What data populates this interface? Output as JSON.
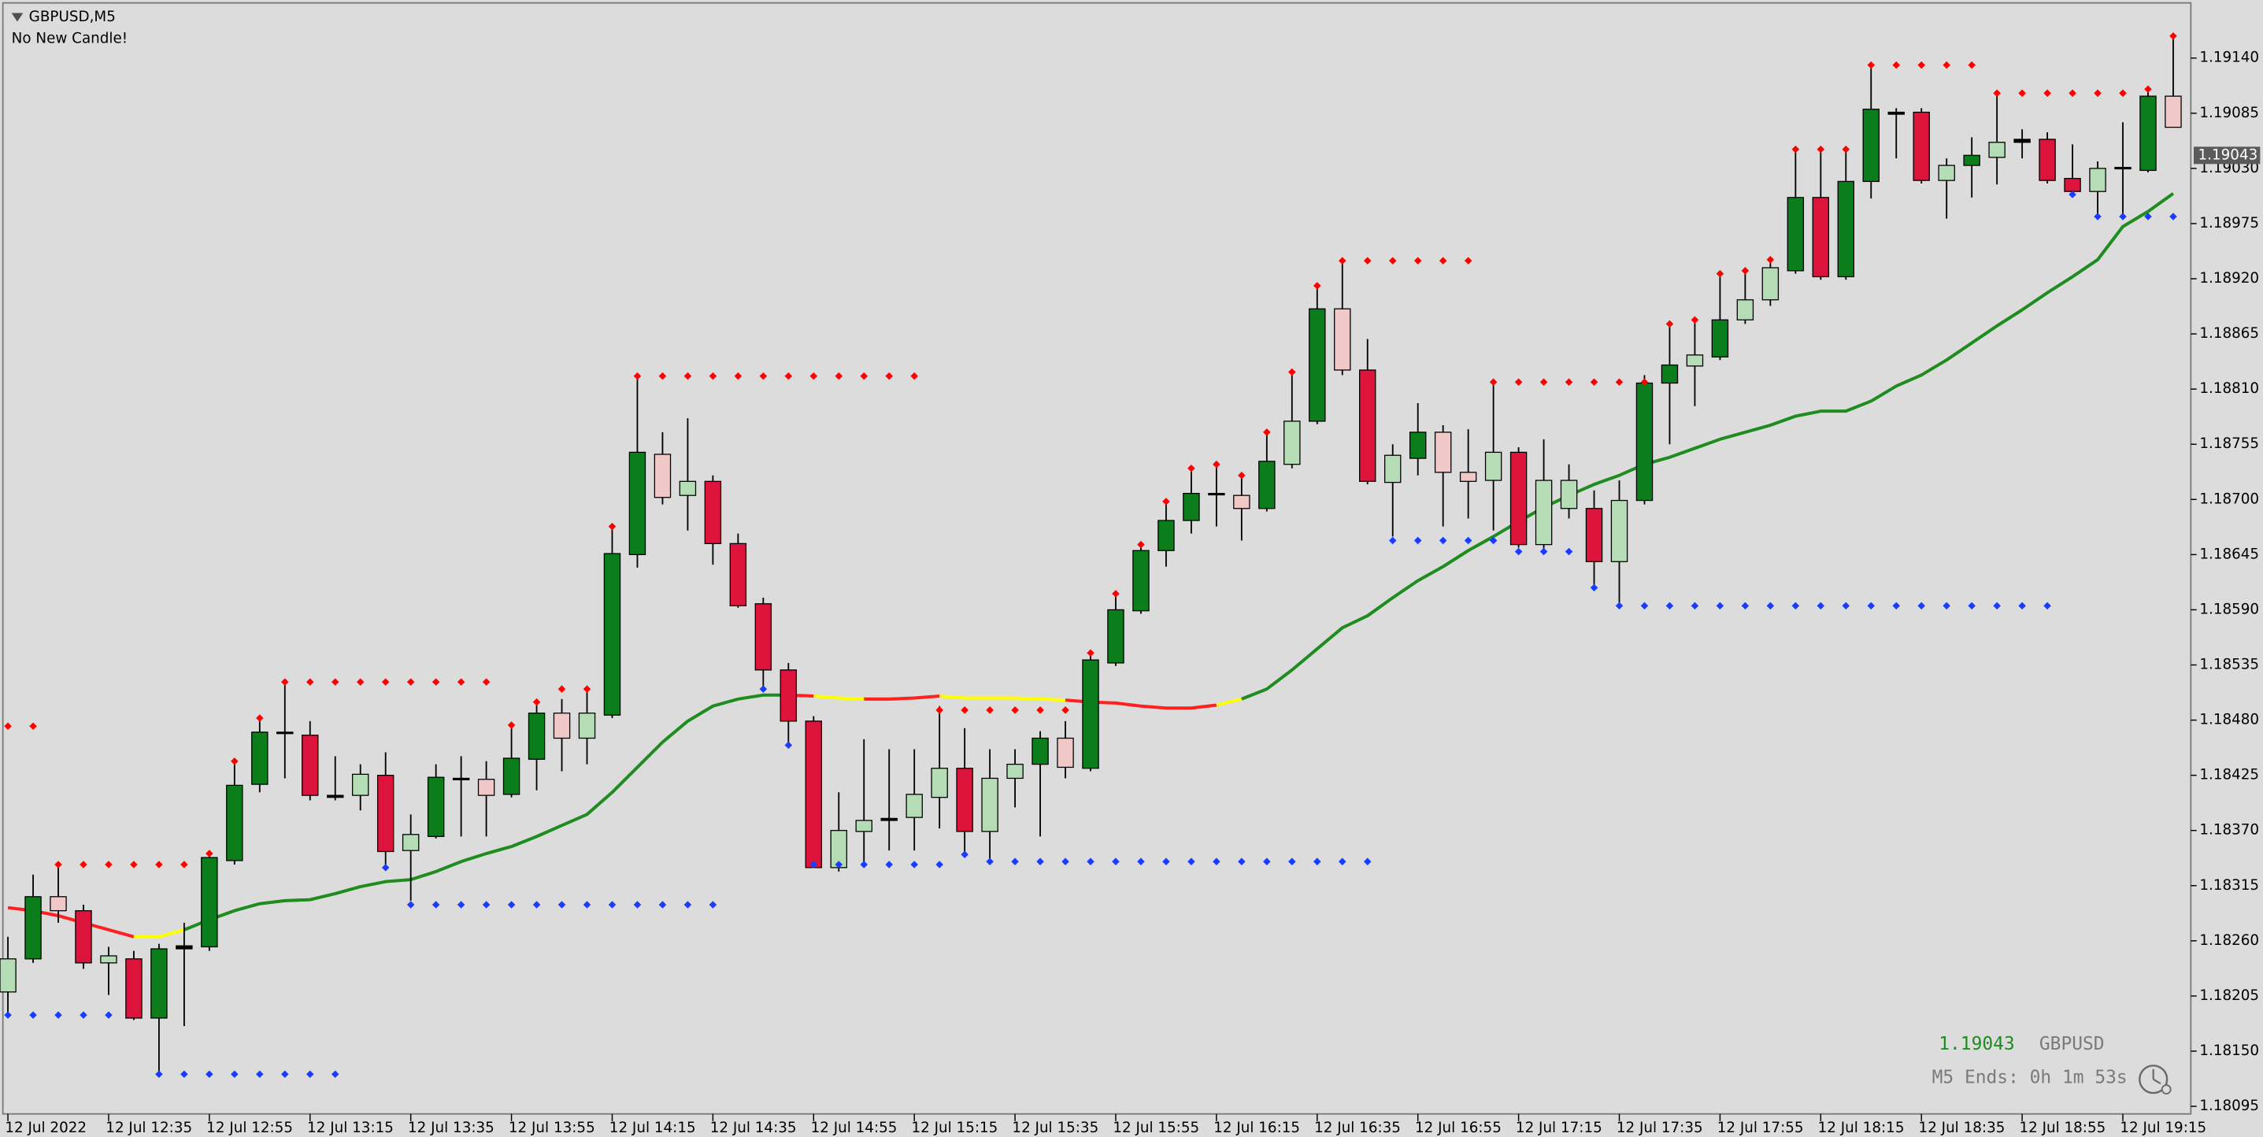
{
  "header": {
    "symbol_title": "GBPUSD,M5",
    "status": "No New Candle!"
  },
  "chart_data": {
    "type": "candlestick",
    "xlim": [
      -0.2,
      86.7
    ],
    "ylim": [
      1.18086,
      1.19195
    ],
    "xticks": [
      {
        "value": 0,
        "label": "12 Jul 2022"
      },
      {
        "value": 4,
        "label": "12 Jul 12:35"
      },
      {
        "value": 8,
        "label": "12 Jul 12:55"
      },
      {
        "value": 12,
        "label": "12 Jul 13:15"
      },
      {
        "value": 16,
        "label": "12 Jul 13:35"
      },
      {
        "value": 20,
        "label": "12 Jul 13:55"
      },
      {
        "value": 24,
        "label": "12 Jul 14:15"
      },
      {
        "value": 28,
        "label": "12 Jul 14:35"
      },
      {
        "value": 32,
        "label": "12 Jul 14:55"
      },
      {
        "value": 36,
        "label": "12 Jul 15:15"
      },
      {
        "value": 40,
        "label": "12 Jul 15:35"
      },
      {
        "value": 44,
        "label": "12 Jul 15:55"
      },
      {
        "value": 48,
        "label": "12 Jul 16:15"
      },
      {
        "value": 52,
        "label": "12 Jul 16:35"
      },
      {
        "value": 56,
        "label": "12 Jul 16:55"
      },
      {
        "value": 60,
        "label": "12 Jul 17:15"
      },
      {
        "value": 64,
        "label": "12 Jul 17:35"
      },
      {
        "value": 68,
        "label": "12 Jul 17:55"
      },
      {
        "value": 72,
        "label": "12 Jul 18:15"
      },
      {
        "value": 76,
        "label": "12 Jul 18:35"
      },
      {
        "value": 80,
        "label": "12 Jul 18:55"
      },
      {
        "value": 84,
        "label": "12 Jul 19:15"
      }
    ],
    "yticks": [
      {
        "value": 1.1914,
        "label": "1.19140"
      },
      {
        "value": 1.19085,
        "label": "1.19085"
      },
      {
        "value": 1.1903,
        "label": "1.19030"
      },
      {
        "value": 1.18975,
        "label": "1.18975"
      },
      {
        "value": 1.1892,
        "label": "1.18920"
      },
      {
        "value": 1.18865,
        "label": "1.18865"
      },
      {
        "value": 1.1881,
        "label": "1.18810"
      },
      {
        "value": 1.18755,
        "label": "1.18755"
      },
      {
        "value": 1.187,
        "label": "1.18700"
      },
      {
        "value": 1.18645,
        "label": "1.18645"
      },
      {
        "value": 1.1859,
        "label": "1.18590"
      },
      {
        "value": 1.18535,
        "label": "1.18535"
      },
      {
        "value": 1.1848,
        "label": "1.18480"
      },
      {
        "value": 1.18425,
        "label": "1.18425"
      },
      {
        "value": 1.1837,
        "label": "1.18370"
      },
      {
        "value": 1.18315,
        "label": "1.18315"
      },
      {
        "value": 1.1826,
        "label": "1.18260"
      },
      {
        "value": 1.18205,
        "label": "1.18205"
      },
      {
        "value": 1.1815,
        "label": "1.18150"
      },
      {
        "value": 1.18095,
        "label": "1.18095"
      }
    ],
    "open": [
      1.18209,
      1.18242,
      1.18304,
      1.1829,
      1.18238,
      1.18242,
      1.18183,
      1.18252,
      1.18254,
      1.1834,
      1.18416,
      1.18468,
      1.18465,
      1.18405,
      1.18405,
      1.18425,
      1.1835,
      1.18364,
      1.18422,
      1.18421,
      1.18406,
      1.18441,
      1.18487,
      1.18462,
      1.18485,
      1.18645,
      1.18745,
      1.18704,
      1.18718,
      1.18656,
      1.18596,
      1.1853,
      1.18479,
      1.18333,
      1.18369,
      1.1838,
      1.18383,
      1.18403,
      1.18432,
      1.18369,
      1.18422,
      1.18436,
      1.18462,
      1.18432,
      1.18537,
      1.18589,
      1.18649,
      1.18679,
      1.18705,
      1.18704,
      1.18691,
      1.18735,
      1.18778,
      1.1889,
      1.18829,
      1.18717,
      1.18741,
      1.18767,
      1.18727,
      1.18719,
      1.18747,
      1.18655,
      1.18691,
      1.18691,
      1.18638,
      1.18699,
      1.18816,
      1.18833,
      1.18842,
      1.18879,
      1.18899,
      1.18928,
      1.19001,
      1.18922,
      1.19017,
      1.19084,
      1.19086,
      1.19018,
      1.19033,
      1.19041,
      1.19056,
      1.19059,
      1.1902,
      1.19007,
      1.1903,
      1.19028,
      1.19102
    ],
    "high": [
      1.18264,
      1.18326,
      1.18336,
      1.18296,
      1.18254,
      1.1825,
      1.18257,
      1.18278,
      1.1835,
      1.18439,
      1.18479,
      1.18518,
      1.18479,
      1.18444,
      1.18436,
      1.18448,
      1.18386,
      1.18436,
      1.18444,
      1.18439,
      1.18472,
      1.18498,
      1.18501,
      1.18511,
      1.18671,
      1.18821,
      1.18767,
      1.18781,
      1.18724,
      1.18666,
      1.18602,
      1.18537,
      1.18484,
      1.18408,
      1.18461,
      1.18451,
      1.18451,
      1.18494,
      1.18472,
      1.18451,
      1.18451,
      1.18469,
      1.18479,
      1.18548,
      1.18606,
      1.18655,
      1.18698,
      1.18731,
      1.18735,
      1.18724,
      1.18767,
      1.18827,
      1.18913,
      1.18939,
      1.1886,
      1.18755,
      1.18796,
      1.18774,
      1.1877,
      1.18817,
      1.18752,
      1.1876,
      1.18735,
      1.18709,
      1.18719,
      1.18824,
      1.18875,
      1.18879,
      1.18925,
      1.18928,
      1.18939,
      1.19047,
      1.19047,
      1.19047,
      1.19133,
      1.1909,
      1.1909,
      1.1904,
      1.19061,
      1.19105,
      1.19069,
      1.19066,
      1.19054,
      1.19037,
      1.19076,
      1.19112,
      1.19162
    ],
    "low": [
      1.18185,
      1.18238,
      1.18278,
      1.18232,
      1.18206,
      1.18181,
      1.18127,
      1.18175,
      1.1825,
      1.18336,
      1.18408,
      1.18422,
      1.184,
      1.184,
      1.1839,
      1.18336,
      1.183,
      1.18362,
      1.18364,
      1.18364,
      1.18403,
      1.1841,
      1.18429,
      1.18436,
      1.18482,
      1.18632,
      1.18695,
      1.18669,
      1.18635,
      1.18592,
      1.18511,
      1.18458,
      1.18333,
      1.18329,
      1.18336,
      1.1835,
      1.1835,
      1.18372,
      1.18347,
      1.18339,
      1.18393,
      1.18364,
      1.18422,
      1.18429,
      1.18534,
      1.18586,
      1.18633,
      1.18666,
      1.18673,
      1.18659,
      1.18688,
      1.18731,
      1.18775,
      1.18824,
      1.18715,
      1.18663,
      1.18724,
      1.18673,
      1.18681,
      1.18669,
      1.18652,
      1.18649,
      1.18681,
      1.18612,
      1.18592,
      1.18695,
      1.18755,
      1.18793,
      1.18839,
      1.18875,
      1.18893,
      1.18925,
      1.18919,
      1.18919,
      1.19,
      1.1904,
      1.19015,
      1.1898,
      1.19001,
      1.19014,
      1.1904,
      1.19015,
      1.19004,
      1.1898,
      1.18982,
      1.19026,
      1.19071
    ],
    "close": [
      1.18242,
      1.18304,
      1.1829,
      1.18238,
      1.18245,
      1.18183,
      1.18252,
      1.18255,
      1.18343,
      1.18415,
      1.18468,
      1.18467,
      1.18405,
      1.18403,
      1.18426,
      1.18349,
      1.18366,
      1.18423,
      1.18421,
      1.18405,
      1.18442,
      1.18487,
      1.18462,
      1.18487,
      1.18646,
      1.18747,
      1.18702,
      1.18718,
      1.18656,
      1.18594,
      1.1853,
      1.18479,
      1.18333,
      1.1837,
      1.1838,
      1.18382,
      1.18406,
      1.18432,
      1.18369,
      1.18422,
      1.18436,
      1.18462,
      1.18433,
      1.1854,
      1.1859,
      1.18649,
      1.18679,
      1.18706,
      1.18706,
      1.18691,
      1.18738,
      1.18778,
      1.1889,
      1.18829,
      1.18718,
      1.18744,
      1.18767,
      1.18727,
      1.18718,
      1.18747,
      1.18655,
      1.18719,
      1.18719,
      1.18638,
      1.18699,
      1.18816,
      1.18834,
      1.18844,
      1.18879,
      1.18899,
      1.18931,
      1.19001,
      1.18922,
      1.19017,
      1.19089,
      1.19086,
      1.19018,
      1.19033,
      1.19043,
      1.19056,
      1.19059,
      1.19018,
      1.19007,
      1.1903,
      1.19031,
      1.19102,
      1.19071
    ],
    "colors": [
      "#b5ddb5",
      "#0b7d1b",
      "#f0c8c8",
      "#dc143c",
      "#b5ddb5",
      "#dc143c",
      "#0b7d1b",
      "#000000",
      "#0b7d1b",
      "#0b7d1b",
      "#0b7d1b",
      "#000000",
      "#dc143c",
      "#000000",
      "#b5ddb5",
      "#dc143c",
      "#b5ddb5",
      "#0b7d1b",
      "#000000",
      "#f0c8c8",
      "#0b7d1b",
      "#0b7d1b",
      "#f0c8c8",
      "#b5ddb5",
      "#0b7d1b",
      "#0b7d1b",
      "#f0c8c8",
      "#b5ddb5",
      "#dc143c",
      "#dc143c",
      "#dc143c",
      "#dc143c",
      "#dc143c",
      "#b5ddb5",
      "#b5ddb5",
      "#000000",
      "#b5ddb5",
      "#b5ddb5",
      "#dc143c",
      "#b5ddb5",
      "#b5ddb5",
      "#0b7d1b",
      "#f0c8c8",
      "#0b7d1b",
      "#0b7d1b",
      "#0b7d1b",
      "#0b7d1b",
      "#0b7d1b",
      "#000000",
      "#f0c8c8",
      "#0b7d1b",
      "#b5ddb5",
      "#0b7d1b",
      "#f0c8c8",
      "#dc143c",
      "#b5ddb5",
      "#0b7d1b",
      "#f0c8c8",
      "#f0c8c8",
      "#b5ddb5",
      "#dc143c",
      "#b5ddb5",
      "#b5ddb5",
      "#dc143c",
      "#b5ddb5",
      "#0b7d1b",
      "#0b7d1b",
      "#b5ddb5",
      "#0b7d1b",
      "#b5ddb5",
      "#b5ddb5",
      "#0b7d1b",
      "#dc143c",
      "#0b7d1b",
      "#0b7d1b",
      "#000000",
      "#dc143c",
      "#b5ddb5",
      "#0b7d1b",
      "#b5ddb5",
      "#000000",
      "#dc143c",
      "#dc143c",
      "#b5ddb5",
      "#000000",
      "#0b7d1b",
      "#f0c8c8"
    ],
    "moving_average": {
      "values": [
        1.18293,
        1.1829,
        1.18285,
        1.18278,
        1.18271,
        1.18264,
        1.18264,
        1.18271,
        1.18281,
        1.1829,
        1.18297,
        1.183,
        1.18301,
        1.18307,
        1.18314,
        1.18319,
        1.18321,
        1.18329,
        1.18339,
        1.18347,
        1.18354,
        1.18364,
        1.18375,
        1.18386,
        1.18408,
        1.18433,
        1.18458,
        1.18479,
        1.18494,
        1.18501,
        1.18505,
        1.18505,
        1.18504,
        1.18502,
        1.18501,
        1.18501,
        1.18502,
        1.18504,
        1.18502,
        1.18502,
        1.18502,
        1.18501,
        1.185,
        1.18498,
        1.18497,
        1.18494,
        1.18492,
        1.18492,
        1.18495,
        1.18501,
        1.18511,
        1.1853,
        1.18551,
        1.18572,
        1.18584,
        1.18602,
        1.18619,
        1.18633,
        1.18649,
        1.18663,
        1.18678,
        1.18692,
        1.18704,
        1.18715,
        1.18724,
        1.18735,
        1.18742,
        1.18751,
        1.1876,
        1.18767,
        1.18774,
        1.18783,
        1.18788,
        1.18788,
        1.18798,
        1.18813,
        1.18824,
        1.18839,
        1.18856,
        1.18873,
        1.18889,
        1.18906,
        1.18922,
        1.18939,
        1.18972,
        1.18987,
        1.19005
      ],
      "colors": [
        "#ff2020",
        "#ff2020",
        "#ff2020",
        "#ff2020",
        "#ff2020",
        "#ffff00",
        "#ffff00",
        "#1e8c1e",
        "#1e8c1e",
        "#1e8c1e",
        "#1e8c1e",
        "#1e8c1e",
        "#1e8c1e",
        "#1e8c1e",
        "#1e8c1e",
        "#1e8c1e",
        "#1e8c1e",
        "#1e8c1e",
        "#1e8c1e",
        "#1e8c1e",
        "#1e8c1e",
        "#1e8c1e",
        "#1e8c1e",
        "#1e8c1e",
        "#1e8c1e",
        "#1e8c1e",
        "#1e8c1e",
        "#1e8c1e",
        "#1e8c1e",
        "#1e8c1e",
        "#1e8c1e",
        "#ff2020",
        "#ffff00",
        "#ffff00",
        "#ff2020",
        "#ff2020",
        "#ff2020",
        "#ffff00",
        "#ffff00",
        "#ffff00",
        "#ffff00",
        "#ffff00",
        "#ff2020",
        "#ff2020",
        "#ff2020",
        "#ff2020",
        "#ff2020",
        "#ff2020",
        "#ffff00",
        "#1e8c1e",
        "#1e8c1e",
        "#1e8c1e",
        "#1e8c1e",
        "#1e8c1e",
        "#1e8c1e",
        "#1e8c1e",
        "#1e8c1e",
        "#1e8c1e",
        "#1e8c1e",
        "#1e8c1e",
        "#1e8c1e",
        "#1e8c1e",
        "#1e8c1e",
        "#1e8c1e",
        "#1e8c1e",
        "#1e8c1e",
        "#1e8c1e",
        "#1e8c1e",
        "#1e8c1e",
        "#1e8c1e",
        "#1e8c1e",
        "#1e8c1e",
        "#1e8c1e",
        "#1e8c1e",
        "#1e8c1e",
        "#1e8c1e",
        "#1e8c1e",
        "#1e8c1e",
        "#1e8c1e",
        "#1e8c1e",
        "#1e8c1e",
        "#1e8c1e",
        "#1e8c1e",
        "#1e8c1e",
        "#1e8c1e",
        "#1e8c1e",
        "#1e8c1e"
      ]
    },
    "resistance_dots": {
      "color": "#ff0000",
      "values": [
        1.18474,
        1.18474,
        1.18336,
        1.18336,
        1.18336,
        1.18336,
        1.18336,
        1.18336,
        1.18347,
        1.18439,
        1.18482,
        1.18518,
        1.18518,
        1.18518,
        1.18518,
        1.18518,
        1.18518,
        1.18518,
        1.18518,
        1.18518,
        1.18475,
        1.18498,
        1.18511,
        1.18511,
        1.18673,
        1.18823,
        1.18823,
        1.18823,
        1.18823,
        1.18823,
        1.18823,
        1.18823,
        1.18823,
        1.18823,
        1.18823,
        1.18823,
        1.18823,
        1.1849,
        1.1849,
        1.1849,
        1.1849,
        1.1849,
        1.1849,
        1.18547,
        1.18606,
        1.18655,
        1.18698,
        1.18731,
        1.18735,
        1.18724,
        1.18767,
        1.18827,
        1.18913,
        1.18938,
        1.18938,
        1.18938,
        1.18938,
        1.18938,
        1.18938,
        1.18817,
        1.18817,
        1.18817,
        1.18817,
        1.18817,
        1.18817,
        1.18817,
        1.18875,
        1.18879,
        1.18925,
        1.18928,
        1.18939,
        1.19049,
        1.19049,
        1.19049,
        1.19133,
        1.19133,
        1.19133,
        1.19133,
        1.19133,
        1.19105,
        1.19105,
        1.19105,
        1.19105,
        1.19105,
        1.19105,
        1.19109,
        1.19162
      ]
    },
    "support_dots": {
      "color": "#1a3cff",
      "values": [
        1.18186,
        1.18186,
        1.18186,
        1.18186,
        1.18186,
        null,
        1.18127,
        1.18127,
        1.18127,
        1.18127,
        1.18127,
        1.18127,
        1.18127,
        1.18127,
        null,
        1.18333,
        1.18296,
        1.18296,
        1.18296,
        1.18296,
        1.18296,
        1.18296,
        1.18296,
        1.18296,
        1.18296,
        1.18296,
        1.18296,
        1.18296,
        1.18296,
        null,
        1.18511,
        1.18455,
        1.18336,
        1.18336,
        1.18336,
        1.18336,
        1.18336,
        1.18336,
        1.18346,
        1.18339,
        1.18339,
        1.18339,
        1.18339,
        1.18339,
        1.18339,
        1.18339,
        1.18339,
        1.18339,
        1.18339,
        1.18339,
        1.18339,
        1.18339,
        1.18339,
        1.18339,
        1.18339,
        1.18659,
        1.18659,
        1.18659,
        1.18659,
        1.18659,
        1.18648,
        1.18648,
        1.18648,
        1.18612,
        1.18594,
        1.18594,
        1.18594,
        1.18594,
        1.18594,
        1.18594,
        1.18594,
        1.18594,
        1.18594,
        1.18594,
        1.18594,
        1.18594,
        1.18594,
        1.18594,
        1.18594,
        1.18594,
        1.18594,
        1.18594,
        1.19004,
        1.18982,
        1.18982,
        1.18982,
        1.18982
      ]
    },
    "current_price": 1.19043
  },
  "info": {
    "bid": 1.19043,
    "symbol": "GBPUSD",
    "timer": "M5 Ends: 0h 1m 53s"
  }
}
